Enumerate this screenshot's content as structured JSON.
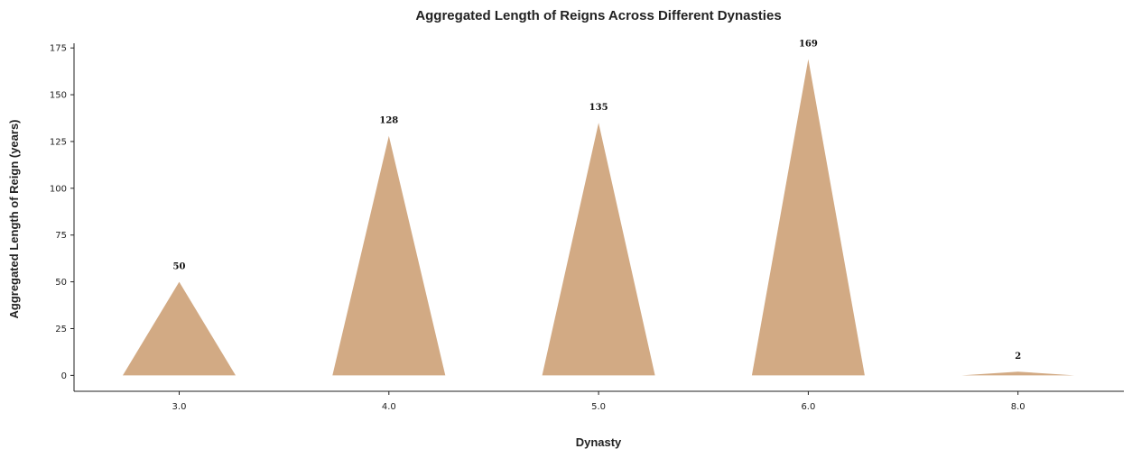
{
  "chart_data": {
    "type": "bar",
    "title": "Aggregated Length of Reigns Across Different Dynasties",
    "xlabel": "Dynasty",
    "ylabel": "Aggregated Length of Reign (years)",
    "categories": [
      "3.0",
      "4.0",
      "5.0",
      "6.0",
      "8.0"
    ],
    "values": [
      50,
      128,
      135,
      169,
      2
    ],
    "data_labels": [
      "50",
      "128",
      "135",
      "169",
      "2"
    ],
    "ylim": [
      -8.5,
      177.5
    ],
    "yticks": [
      0,
      25,
      50,
      75,
      100,
      125,
      150,
      175
    ],
    "bar_shape": "triangle",
    "bar_color": "#d2aa84",
    "grid": false,
    "legend": "none"
  }
}
